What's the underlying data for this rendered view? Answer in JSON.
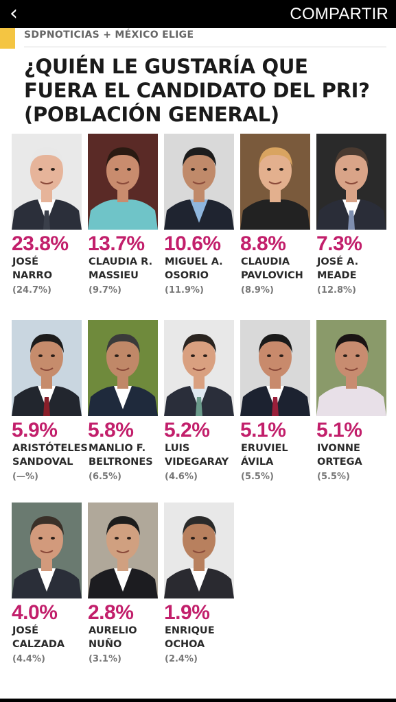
{
  "header": {
    "back_label": "‹",
    "share_label": "COMPARTIR"
  },
  "source": "SDPNOTICIAS + MÉXICO ELIGE",
  "title_lines": [
    "¿QUIÉN LE GUSTARÍA QUE",
    "FUERA EL CANDIDATO DEL PRI?",
    "(POBLACIÓN GENERAL)"
  ],
  "colors": {
    "accent": "#f4c542",
    "percent": "#c21f6b"
  },
  "candidates": [
    {
      "pct": "23.8%",
      "name1": "JOSÉ",
      "name2": "NARRO",
      "prev": "(24.7%)",
      "bg": "#e9e9e9",
      "skin": "#e6b49a",
      "hair": "#e8e8e8",
      "suit": "#2b2f3a",
      "shirt": "#ffffff",
      "tie": "#3a3f4a"
    },
    {
      "pct": "13.7%",
      "name1": "CLAUDIA R.",
      "name2": "MASSIEU",
      "prev": "(9.7%)",
      "bg": "#5a2a26",
      "skin": "#c98c6e",
      "hair": "#2a1a12",
      "suit": "#6fc4c8",
      "shirt": "#6fc4c8",
      "tie": ""
    },
    {
      "pct": "10.6%",
      "name1": "MIGUEL A.",
      "name2": "OSORIO",
      "prev": "(11.9%)",
      "bg": "#d9d9d9",
      "skin": "#c08a6a",
      "hair": "#1c1c1c",
      "suit": "#1f2430",
      "shirt": "#8fb6de",
      "tie": ""
    },
    {
      "pct": "8.8%",
      "name1": "CLAUDIA",
      "name2": "PAVLOVICH",
      "prev": "(8.9%)",
      "bg": "#7a5a3c",
      "skin": "#e3b08e",
      "hair": "#d9a460",
      "suit": "#222222",
      "shirt": "#222222",
      "tie": ""
    },
    {
      "pct": "7.3%",
      "name1": "JOSÉ A.",
      "name2": "MEADE",
      "prev": "(12.8%)",
      "bg": "#2a2a2a",
      "skin": "#d9a488",
      "hair": "#4a3a30",
      "suit": "#2a2d38",
      "shirt": "#ffffff",
      "tie": "#7f8fb0"
    },
    {
      "pct": "5.9%",
      "name1": "ARISTÓTELES",
      "name2": "SANDOVAL",
      "prev": "(—%)",
      "bg": "#c9d6e0",
      "skin": "#c68c6c",
      "hair": "#1c1c1c",
      "suit": "#22262e",
      "shirt": "#ffffff",
      "tie": "#8a1f2a"
    },
    {
      "pct": "5.8%",
      "name1": "MANLIO F.",
      "name2": "BELTRONES",
      "prev": "(6.5%)",
      "bg": "#6f8a3c",
      "skin": "#c08868",
      "hair": "#3a3a3a",
      "suit": "#1f2a3c",
      "shirt": "#ffffff",
      "tie": ""
    },
    {
      "pct": "5.2%",
      "name1": "LUIS",
      "name2": "VIDEGARAY",
      "prev": "(4.6%)",
      "bg": "#e8e8e8",
      "skin": "#d9a080",
      "hair": "#2a2420",
      "suit": "#2a2e3a",
      "shirt": "#dfe8f0",
      "tie": "#6a9a8a"
    },
    {
      "pct": "5.1%",
      "name1": "ERUVIEL",
      "name2": "ÁVILA",
      "prev": "(5.5%)",
      "bg": "#d9d9d9",
      "skin": "#c88a6c",
      "hair": "#1a1a1a",
      "suit": "#1c2230",
      "shirt": "#ffffff",
      "tie": "#9a1f3a"
    },
    {
      "pct": "5.1%",
      "name1": "IVONNE",
      "name2": "ORTEGA",
      "prev": "(5.5%)",
      "bg": "#8a9a6a",
      "skin": "#c88c70",
      "hair": "#1a1414",
      "suit": "#e8e0e8",
      "shirt": "#e8e0e8",
      "tie": ""
    },
    {
      "pct": "4.0%",
      "name1": "JOSÉ",
      "name2": "CALZADA",
      "prev": "(4.4%)",
      "bg": "#6a7a70",
      "skin": "#d29a7c",
      "hair": "#3a3028",
      "suit": "#2a2e38",
      "shirt": "#ffffff",
      "tie": ""
    },
    {
      "pct": "2.8%",
      "name1": "AURELIO",
      "name2": "NUÑO",
      "prev": "(3.1%)",
      "bg": "#b0a89a",
      "skin": "#d0a080",
      "hair": "#1c1c1c",
      "suit": "#1c1c20",
      "shirt": "#ffffff",
      "tie": ""
    },
    {
      "pct": "1.9%",
      "name1": "ENRIQUE",
      "name2": "OCHOA",
      "prev": "(2.4%)",
      "bg": "#e8e8e8",
      "skin": "#b8805e",
      "hair": "#2a2a2a",
      "suit": "#2a2a30",
      "shirt": "#ffffff",
      "tie": ""
    }
  ]
}
